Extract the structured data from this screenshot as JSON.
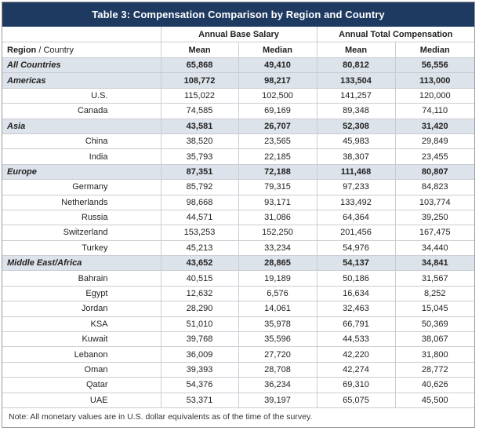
{
  "title": "Table 3: Compensation Comparison by Region and Country",
  "group_headers": [
    "Annual Base Salary",
    "Annual Total Compensation"
  ],
  "column_headers": {
    "region_bold": "Region",
    "region_slash": " / ",
    "region_light": "Country",
    "cols": [
      "Mean",
      "Median",
      "Mean",
      "Median"
    ]
  },
  "rows": [
    {
      "type": "region",
      "name": "All Countries",
      "values": [
        "65,868",
        "49,410",
        "80,812",
        "56,556"
      ]
    },
    {
      "type": "region",
      "name": "Americas",
      "values": [
        "108,772",
        "98,217",
        "133,504",
        "113,000"
      ]
    },
    {
      "type": "country",
      "name": "U.S.",
      "values": [
        "115,022",
        "102,500",
        "141,257",
        "120,000"
      ]
    },
    {
      "type": "country",
      "name": "Canada",
      "values": [
        "74,585",
        "69,169",
        "89,348",
        "74,110"
      ]
    },
    {
      "type": "region",
      "name": "Asia",
      "values": [
        "43,581",
        "26,707",
        "52,308",
        "31,420"
      ]
    },
    {
      "type": "country",
      "name": "China",
      "values": [
        "38,520",
        "23,565",
        "45,983",
        "29,849"
      ]
    },
    {
      "type": "country",
      "name": "India",
      "values": [
        "35,793",
        "22,185",
        "38,307",
        "23,455"
      ]
    },
    {
      "type": "region",
      "name": "Europe",
      "values": [
        "87,351",
        "72,188",
        "111,468",
        "80,807"
      ]
    },
    {
      "type": "country",
      "name": "Germany",
      "values": [
        "85,792",
        "79,315",
        "97,233",
        "84,823"
      ]
    },
    {
      "type": "country",
      "name": "Netherlands",
      "values": [
        "98,668",
        "93,171",
        "133,492",
        "103,774"
      ]
    },
    {
      "type": "country",
      "name": "Russia",
      "values": [
        "44,571",
        "31,086",
        "64,364",
        "39,250"
      ]
    },
    {
      "type": "country",
      "name": "Switzerland",
      "values": [
        "153,253",
        "152,250",
        "201,456",
        "167,475"
      ]
    },
    {
      "type": "country",
      "name": "Turkey",
      "values": [
        "45,213",
        "33,234",
        "54,976",
        "34,440"
      ]
    },
    {
      "type": "region",
      "name": "Middle East/Africa",
      "values": [
        "43,652",
        "28,865",
        "54,137",
        "34,841"
      ]
    },
    {
      "type": "country",
      "name": "Bahrain",
      "values": [
        "40,515",
        "19,189",
        "50,186",
        "31,567"
      ]
    },
    {
      "type": "country",
      "name": "Egypt",
      "values": [
        "12,632",
        "6,576",
        "16,634",
        "8,252"
      ]
    },
    {
      "type": "country",
      "name": "Jordan",
      "values": [
        "28,290",
        "14,061",
        "32,463",
        "15,045"
      ]
    },
    {
      "type": "country",
      "name": "KSA",
      "values": [
        "51,010",
        "35,978",
        "66,791",
        "50,369"
      ]
    },
    {
      "type": "country",
      "name": "Kuwait",
      "values": [
        "39,768",
        "35,596",
        "44,533",
        "38,067"
      ]
    },
    {
      "type": "country",
      "name": "Lebanon",
      "values": [
        "36,009",
        "27,720",
        "42,220",
        "31,800"
      ]
    },
    {
      "type": "country",
      "name": "Oman",
      "values": [
        "39,393",
        "28,708",
        "42,274",
        "28,772"
      ]
    },
    {
      "type": "country",
      "name": "Qatar",
      "values": [
        "54,376",
        "36,234",
        "69,310",
        "40,626"
      ]
    },
    {
      "type": "country",
      "name": "UAE",
      "values": [
        "53,371",
        "39,197",
        "65,075",
        "45,500"
      ]
    }
  ],
  "note": "Note: All monetary values are in U.S. dollar equivalents as of the time of the survey.",
  "colors": {
    "title_bg": "#1f3a60",
    "region_row_bg": "#dde3ea",
    "grid": "#c9cdd3"
  }
}
